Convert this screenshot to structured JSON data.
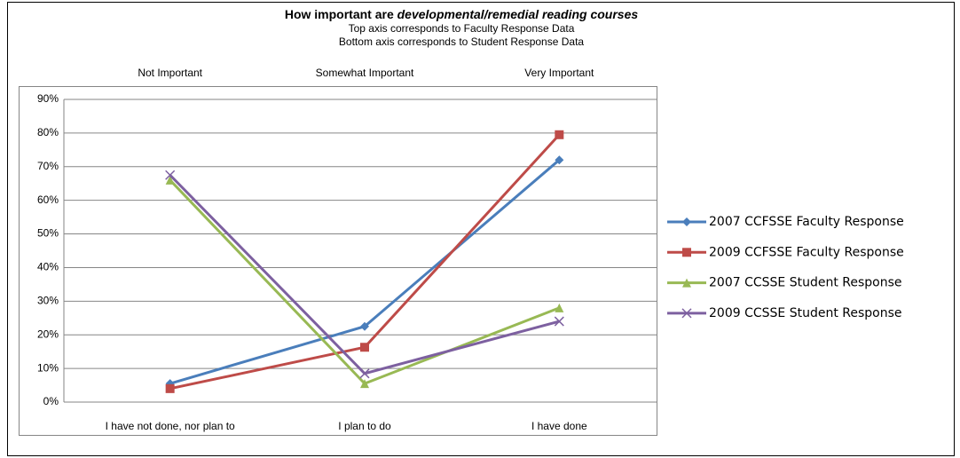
{
  "chart_data": {
    "type": "line",
    "title": {
      "plain": "How important are",
      "italic": "developmental/remedial reading courses"
    },
    "subtitle": [
      "Top axis corresponds to Faculty Response Data",
      "Bottom axis corresponds to Student Response Data"
    ],
    "top_categories": [
      "Not Important",
      "Somewhat Important",
      "Very Important"
    ],
    "categories": [
      "I have not done, nor plan to",
      "I plan to do",
      "I have done"
    ],
    "series": [
      {
        "name": "2007 CCFSSE Faculty Response",
        "color": "#4a7ebb",
        "marker": "diamond",
        "values": [
          5.5,
          22.5,
          72
        ]
      },
      {
        "name": "2009 CCFSSE Faculty Response",
        "color": "#be4b48",
        "marker": "square",
        "values": [
          4,
          16.3,
          79.5
        ]
      },
      {
        "name": "2007 CCSSE Student Response",
        "color": "#98b954",
        "marker": "triangle",
        "values": [
          66,
          5.5,
          28
        ]
      },
      {
        "name": "2009 CCSSE Student Response",
        "color": "#7d60a0",
        "marker": "x",
        "values": [
          67.5,
          8.5,
          24
        ]
      }
    ],
    "ylim": [
      0,
      90
    ],
    "yticks": [
      {
        "value": 0,
        "label": "0%"
      },
      {
        "value": 10,
        "label": "10%"
      },
      {
        "value": 20,
        "label": "20%"
      },
      {
        "value": 30,
        "label": "30%"
      },
      {
        "value": 40,
        "label": "40%"
      },
      {
        "value": 50,
        "label": "50%"
      },
      {
        "value": 60,
        "label": "60%"
      },
      {
        "value": 70,
        "label": "70%"
      },
      {
        "value": 80,
        "label": "80%"
      },
      {
        "value": 90,
        "label": "90%"
      }
    ],
    "grid": true,
    "legend": "right"
  }
}
